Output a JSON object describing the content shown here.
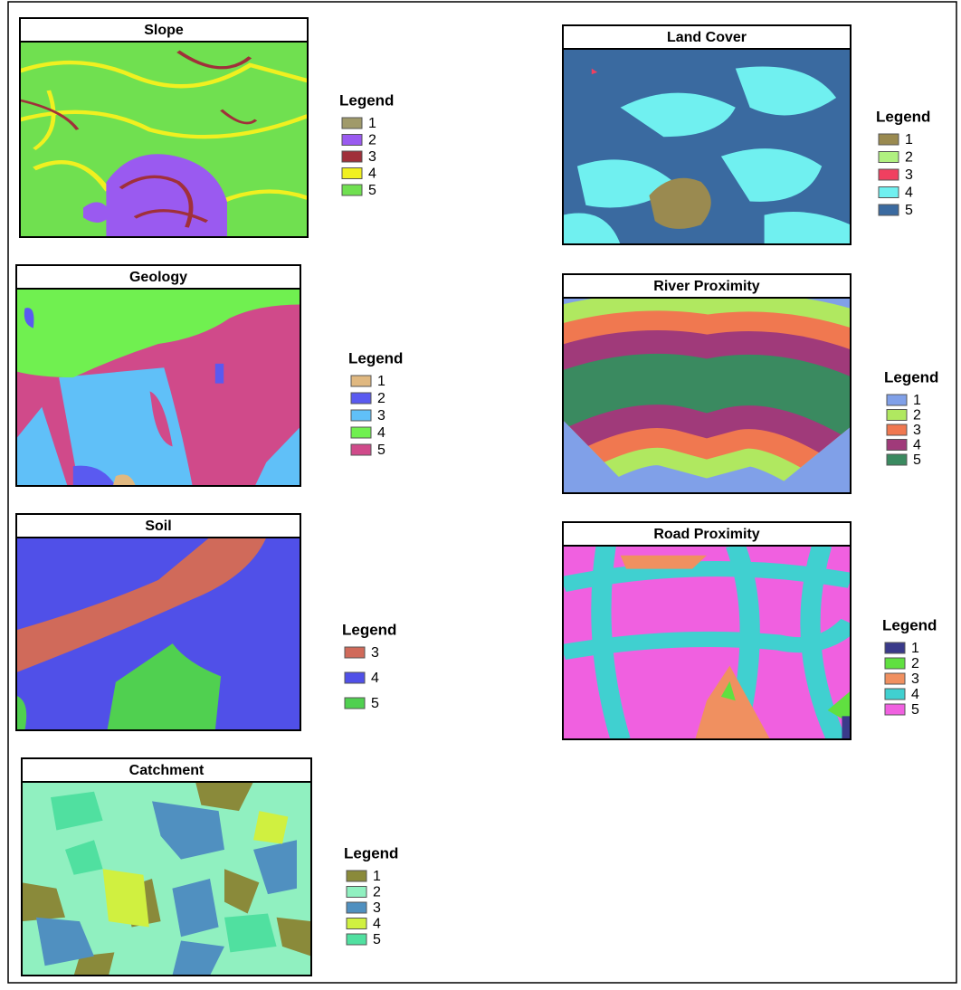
{
  "panels": [
    {
      "title": "Slope",
      "legend_title": "Legend",
      "items": [
        {
          "label": "1",
          "color": "#a09a6a"
        },
        {
          "label": "2",
          "color": "#9a5af0"
        },
        {
          "label": "3",
          "color": "#a0303a"
        },
        {
          "label": "4",
          "color": "#f0f020"
        },
        {
          "label": "5",
          "color": "#70e050"
        }
      ]
    },
    {
      "title": "Land Cover",
      "legend_title": "Legend",
      "items": [
        {
          "label": "1",
          "color": "#9a8a50"
        },
        {
          "label": "2",
          "color": "#b0f080"
        },
        {
          "label": "3",
          "color": "#f04060"
        },
        {
          "label": "4",
          "color": "#70f0f0"
        },
        {
          "label": "5",
          "color": "#3a6aa0"
        }
      ]
    },
    {
      "title": "Geology",
      "legend_title": "Legend",
      "items": [
        {
          "label": "1",
          "color": "#e0b880"
        },
        {
          "label": "2",
          "color": "#5a5af0"
        },
        {
          "label": "3",
          "color": "#60c0f8"
        },
        {
          "label": "4",
          "color": "#70f050"
        },
        {
          "label": "5",
          "color": "#d04a8a"
        }
      ]
    },
    {
      "title": "River Proximity",
      "legend_title": "Legend",
      "items": [
        {
          "label": "1",
          "color": "#80a0e8"
        },
        {
          "label": "2",
          "color": "#b0e860"
        },
        {
          "label": "3",
          "color": "#f07850"
        },
        {
          "label": "4",
          "color": "#a03a7a"
        },
        {
          "label": "5",
          "color": "#3a8a60"
        }
      ]
    },
    {
      "title": "Soil",
      "legend_title": "Legend",
      "items": [
        {
          "label": "3",
          "color": "#d06a5a"
        },
        {
          "label": "4",
          "color": "#5050e8"
        },
        {
          "label": "5",
          "color": "#50d050"
        }
      ]
    },
    {
      "title": "Road Proximity",
      "legend_title": "Legend",
      "items": [
        {
          "label": "1",
          "color": "#3a3a8a"
        },
        {
          "label": "2",
          "color": "#60e040"
        },
        {
          "label": "3",
          "color": "#f09060"
        },
        {
          "label": "4",
          "color": "#40d0d0"
        },
        {
          "label": "5",
          "color": "#f060e0"
        }
      ]
    },
    {
      "title": "Catchment",
      "legend_title": "Legend",
      "items": [
        {
          "label": "1",
          "color": "#8a8a3a"
        },
        {
          "label": "2",
          "color": "#90f0c0"
        },
        {
          "label": "3",
          "color": "#5090c0"
        },
        {
          "label": "4",
          "color": "#d0f040"
        },
        {
          "label": "5",
          "color": "#50e0a0"
        }
      ]
    }
  ]
}
